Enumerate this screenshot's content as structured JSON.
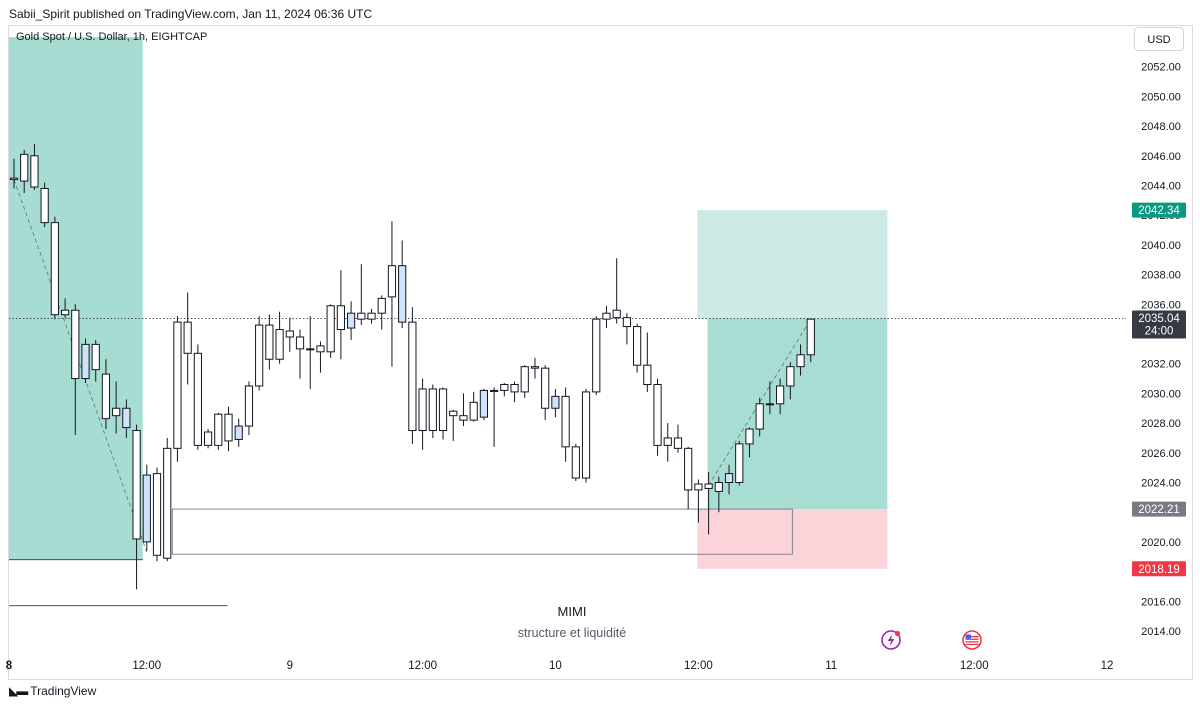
{
  "header": {
    "published_line": "Sabii_Spirit published on TradingView.com, Jan 11, 2024 06:36 UTC"
  },
  "legend": {
    "symbol": "Gold Spot / U.S. Dollar, 1h, EIGHTCAP"
  },
  "price_scale": {
    "currency": "USD"
  },
  "footer": {
    "brand": "TradingView",
    "logo_icon": "tradingview-logo-icon"
  },
  "colors": {
    "bull_body": "#ffffff",
    "bull_highlight": "#cfe3fb",
    "bear_body": "#ffffff",
    "candle_outline": "#131722",
    "target_zone": "#cdeae6",
    "profit_zone": "#a8ddd3",
    "stop_zone": "#fbd3d9",
    "left_zone": "#a7dcd3",
    "target_label": "#089981",
    "current_label": "#363a45",
    "entry_label": "#787b86",
    "stop_label": "#f23645"
  },
  "chart_data": {
    "type": "candlestick",
    "symbol": "Gold Spot / U.S. Dollar",
    "interval": "1h",
    "exchange": "EIGHTCAP",
    "y_axis": {
      "ticks": [
        2014,
        2016,
        2018,
        2020,
        2022,
        2024,
        2026,
        2028,
        2030,
        2032,
        2034,
        2036,
        2038,
        2040,
        2042,
        2044,
        2046,
        2048,
        2050,
        2052
      ],
      "tick_labels": [
        "2014.00",
        "2016.00",
        "2018.00",
        "2020.00",
        "2022.00",
        "2024.00",
        "2026.00",
        "2028.00",
        "2030.00",
        "2032.00",
        "2034.00",
        "2036.00",
        "2038.00",
        "2040.00",
        "2042.00",
        "2044.00",
        "2046.00",
        "2048.00",
        "2050.00",
        "2052.00"
      ],
      "ylim": [
        2012.5,
        2054
      ]
    },
    "x_axis": {
      "labels": [
        {
          "text": "8",
          "bar": -0.5,
          "bold": true
        },
        {
          "text": "12:00",
          "bar": 13
        },
        {
          "text": "9",
          "bar": 27
        },
        {
          "text": "12:00",
          "bar": 40
        },
        {
          "text": "10",
          "bar": 53
        },
        {
          "text": "12:00",
          "bar": 67
        },
        {
          "text": "11",
          "bar": 80
        },
        {
          "text": "12:00",
          "bar": 94
        },
        {
          "text": "12",
          "bar": 107
        }
      ]
    },
    "candles": [
      {
        "o": 2044.5,
        "h": 2045.8,
        "l": 2043.8,
        "c": 2044.4
      },
      {
        "o": 2044.3,
        "h": 2046.4,
        "l": 2043.5,
        "c": 2046.1
      },
      {
        "o": 2046.0,
        "h": 2046.8,
        "l": 2043.7,
        "c": 2043.9
      },
      {
        "o": 2043.8,
        "h": 2044.2,
        "l": 2041.2,
        "c": 2041.5
      },
      {
        "o": 2041.5,
        "h": 2041.9,
        "l": 2035.0,
        "c": 2035.3
      },
      {
        "o": 2035.6,
        "h": 2036.4,
        "l": 2035.1,
        "c": 2035.3
      },
      {
        "o": 2035.6,
        "h": 2036.0,
        "l": 2027.2,
        "c": 2031.0
      },
      {
        "o": 2031.0,
        "h": 2033.7,
        "l": 2030.7,
        "c": 2033.3,
        "hl": true
      },
      {
        "o": 2033.3,
        "h": 2033.6,
        "l": 2030.8,
        "c": 2031.6
      },
      {
        "o": 2031.3,
        "h": 2032.3,
        "l": 2027.6,
        "c": 2028.3
      },
      {
        "o": 2028.5,
        "h": 2030.8,
        "l": 2027.3,
        "c": 2029.0
      },
      {
        "o": 2029.0,
        "h": 2029.6,
        "l": 2027.0,
        "c": 2027.7,
        "hl": true
      },
      {
        "o": 2027.5,
        "h": 2027.9,
        "l": 2016.8,
        "c": 2020.2
      },
      {
        "o": 2020.0,
        "h": 2025.2,
        "l": 2019.4,
        "c": 2024.5,
        "hl": true
      },
      {
        "o": 2024.6,
        "h": 2025.0,
        "l": 2018.7,
        "c": 2019.1
      },
      {
        "o": 2018.9,
        "h": 2027.0,
        "l": 2018.7,
        "c": 2026.3
      },
      {
        "o": 2026.3,
        "h": 2035.2,
        "l": 2025.4,
        "c": 2034.8
      },
      {
        "o": 2034.8,
        "h": 2036.8,
        "l": 2030.6,
        "c": 2032.7
      },
      {
        "o": 2032.7,
        "h": 2033.3,
        "l": 2026.2,
        "c": 2026.5
      },
      {
        "o": 2026.5,
        "h": 2027.6,
        "l": 2026.3,
        "c": 2027.4
      },
      {
        "o": 2026.5,
        "h": 2028.7,
        "l": 2026.2,
        "c": 2028.6
      },
      {
        "o": 2028.6,
        "h": 2029.1,
        "l": 2026.1,
        "c": 2026.8
      },
      {
        "o": 2026.9,
        "h": 2028.3,
        "l": 2026.4,
        "c": 2027.8,
        "hl": true
      },
      {
        "o": 2027.8,
        "h": 2030.8,
        "l": 2027.2,
        "c": 2030.5
      },
      {
        "o": 2030.5,
        "h": 2035.2,
        "l": 2030.2,
        "c": 2034.6
      },
      {
        "o": 2034.6,
        "h": 2035.3,
        "l": 2031.6,
        "c": 2032.3
      },
      {
        "o": 2032.3,
        "h": 2035.5,
        "l": 2032.0,
        "c": 2034.3
      },
      {
        "o": 2034.2,
        "h": 2035.1,
        "l": 2032.8,
        "c": 2033.8
      },
      {
        "o": 2033.8,
        "h": 2034.3,
        "l": 2031.0,
        "c": 2033.0
      },
      {
        "o": 2033.0,
        "h": 2035.2,
        "l": 2030.3,
        "c": 2033.0
      },
      {
        "o": 2033.2,
        "h": 2033.5,
        "l": 2031.4,
        "c": 2032.8
      },
      {
        "o": 2032.8,
        "h": 2036.0,
        "l": 2032.4,
        "c": 2035.9
      },
      {
        "o": 2035.9,
        "h": 2038.3,
        "l": 2032.3,
        "c": 2034.3
      },
      {
        "o": 2034.4,
        "h": 2036.2,
        "l": 2033.6,
        "c": 2035.4,
        "hl": true
      },
      {
        "o": 2035.4,
        "h": 2038.7,
        "l": 2034.6,
        "c": 2035.0
      },
      {
        "o": 2035.0,
        "h": 2035.7,
        "l": 2034.7,
        "c": 2035.4
      },
      {
        "o": 2035.4,
        "h": 2036.6,
        "l": 2034.3,
        "c": 2036.4
      },
      {
        "o": 2036.5,
        "h": 2041.6,
        "l": 2031.8,
        "c": 2038.6
      },
      {
        "o": 2038.6,
        "h": 2040.3,
        "l": 2034.4,
        "c": 2034.8,
        "hl": true
      },
      {
        "o": 2034.8,
        "h": 2035.8,
        "l": 2026.6,
        "c": 2027.5
      },
      {
        "o": 2027.5,
        "h": 2031.0,
        "l": 2026.2,
        "c": 2030.3
      },
      {
        "o": 2030.3,
        "h": 2030.6,
        "l": 2027.0,
        "c": 2027.5
      },
      {
        "o": 2027.5,
        "h": 2030.4,
        "l": 2026.9,
        "c": 2030.3
      },
      {
        "o": 2028.5,
        "h": 2028.9,
        "l": 2026.8,
        "c": 2028.8
      },
      {
        "o": 2028.5,
        "h": 2030.0,
        "l": 2027.8,
        "c": 2028.2
      },
      {
        "o": 2028.2,
        "h": 2030.1,
        "l": 2028.1,
        "c": 2029.4
      },
      {
        "o": 2028.4,
        "h": 2030.3,
        "l": 2028.2,
        "c": 2030.2,
        "hl": true
      },
      {
        "o": 2030.2,
        "h": 2030.4,
        "l": 2026.4,
        "c": 2030.2
      },
      {
        "o": 2030.2,
        "h": 2030.7,
        "l": 2029.8,
        "c": 2030.6
      },
      {
        "o": 2030.6,
        "h": 2030.8,
        "l": 2029.4,
        "c": 2030.1
      },
      {
        "o": 2030.1,
        "h": 2031.9,
        "l": 2029.7,
        "c": 2031.8
      },
      {
        "o": 2031.8,
        "h": 2032.4,
        "l": 2031.0,
        "c": 2031.7
      },
      {
        "o": 2031.7,
        "h": 2031.9,
        "l": 2028.2,
        "c": 2029.0
      },
      {
        "o": 2029.0,
        "h": 2030.3,
        "l": 2028.4,
        "c": 2029.8,
        "hl": true
      },
      {
        "o": 2029.8,
        "h": 2030.4,
        "l": 2025.4,
        "c": 2026.4
      },
      {
        "o": 2026.4,
        "h": 2026.6,
        "l": 2024.1,
        "c": 2024.3
      },
      {
        "o": 2024.3,
        "h": 2030.3,
        "l": 2024.0,
        "c": 2030.1
      },
      {
        "o": 2030.1,
        "h": 2035.2,
        "l": 2029.9,
        "c": 2035.0
      },
      {
        "o": 2035.0,
        "h": 2035.9,
        "l": 2034.4,
        "c": 2035.4
      },
      {
        "o": 2035.6,
        "h": 2039.1,
        "l": 2034.7,
        "c": 2035.1
      },
      {
        "o": 2035.1,
        "h": 2035.4,
        "l": 2033.3,
        "c": 2034.5
      },
      {
        "o": 2034.5,
        "h": 2034.7,
        "l": 2031.4,
        "c": 2031.9
      },
      {
        "o": 2031.9,
        "h": 2034.1,
        "l": 2030.1,
        "c": 2030.6
      },
      {
        "o": 2030.6,
        "h": 2031.0,
        "l": 2025.8,
        "c": 2026.5
      },
      {
        "o": 2026.5,
        "h": 2028.0,
        "l": 2025.4,
        "c": 2027.0
      },
      {
        "o": 2027.0,
        "h": 2027.9,
        "l": 2026.0,
        "c": 2026.3
      },
      {
        "o": 2026.3,
        "h": 2026.4,
        "l": 2022.2,
        "c": 2023.5
      },
      {
        "o": 2023.5,
        "h": 2024.2,
        "l": 2021.3,
        "c": 2023.9
      },
      {
        "o": 2023.9,
        "h": 2024.7,
        "l": 2020.5,
        "c": 2023.6
      },
      {
        "o": 2023.4,
        "h": 2024.4,
        "l": 2022.0,
        "c": 2024.0
      },
      {
        "o": 2024.0,
        "h": 2025.2,
        "l": 2023.2,
        "c": 2024.6,
        "hl": true
      },
      {
        "o": 2024.0,
        "h": 2026.8,
        "l": 2023.8,
        "c": 2026.6
      },
      {
        "o": 2026.6,
        "h": 2027.7,
        "l": 2025.7,
        "c": 2027.6
      },
      {
        "o": 2027.6,
        "h": 2029.7,
        "l": 2027.1,
        "c": 2029.3
      },
      {
        "o": 2029.3,
        "h": 2030.8,
        "l": 2028.6,
        "c": 2029.3
      },
      {
        "o": 2029.3,
        "h": 2031.0,
        "l": 2028.6,
        "c": 2030.5
      },
      {
        "o": 2030.5,
        "h": 2032.1,
        "l": 2029.6,
        "c": 2031.8
      },
      {
        "o": 2031.8,
        "h": 2033.3,
        "l": 2031.2,
        "c": 2032.6
      },
      {
        "o": 2032.6,
        "h": 2035.0,
        "l": 2032.1,
        "c": 2035.0
      }
    ],
    "zones": [
      {
        "name": "left-zone",
        "bar_from": 0,
        "bar_to": 12.6,
        "price_top": 2054,
        "price_bottom": 2018.8
      },
      {
        "name": "target-zone",
        "bar_from": 66.9,
        "bar_to": 85.5,
        "price_top": 2042.34,
        "price_bottom": 2035.04
      },
      {
        "name": "profit-zone",
        "bar_from": 67.9,
        "bar_to": 85.5,
        "price_top": 2035.04,
        "price_bottom": 2022.21
      },
      {
        "name": "stop-zone",
        "bar_from": 66.9,
        "bar_to": 85.5,
        "price_top": 2022.21,
        "price_bottom": 2018.19
      }
    ],
    "lines": {
      "current_price": 2035.04,
      "liquidity_box": {
        "bar_from": 15.5,
        "bar_to": 76.2,
        "price_top": 2022.21,
        "price_bottom": 2019.17
      },
      "left_level_line": {
        "bar_from": 0,
        "bar_to": 12.6,
        "price": 2018.8
      },
      "low_level_line": {
        "bar_from": 0,
        "bar_to": 20.9,
        "price": 2015.7
      }
    },
    "price_labels": [
      {
        "name": "target-price-label",
        "text": "2042.34",
        "price": 2042.34,
        "color_key": "target_label"
      },
      {
        "name": "current-price-label",
        "text": "2035.04",
        "sub": "24:00",
        "price": 2035.04,
        "color_key": "current_label"
      },
      {
        "name": "entry-price-label",
        "text": "2022.21",
        "price": 2022.21,
        "color_key": "entry_label"
      },
      {
        "name": "stop-price-label",
        "text": "2018.19",
        "price": 2018.19,
        "color_key": "stop_label"
      }
    ],
    "annotations": {
      "title": "MIMI",
      "subtitle": "structure et liquidité"
    },
    "event_icons": [
      "lightning-icon",
      "us-flag-icon"
    ]
  }
}
